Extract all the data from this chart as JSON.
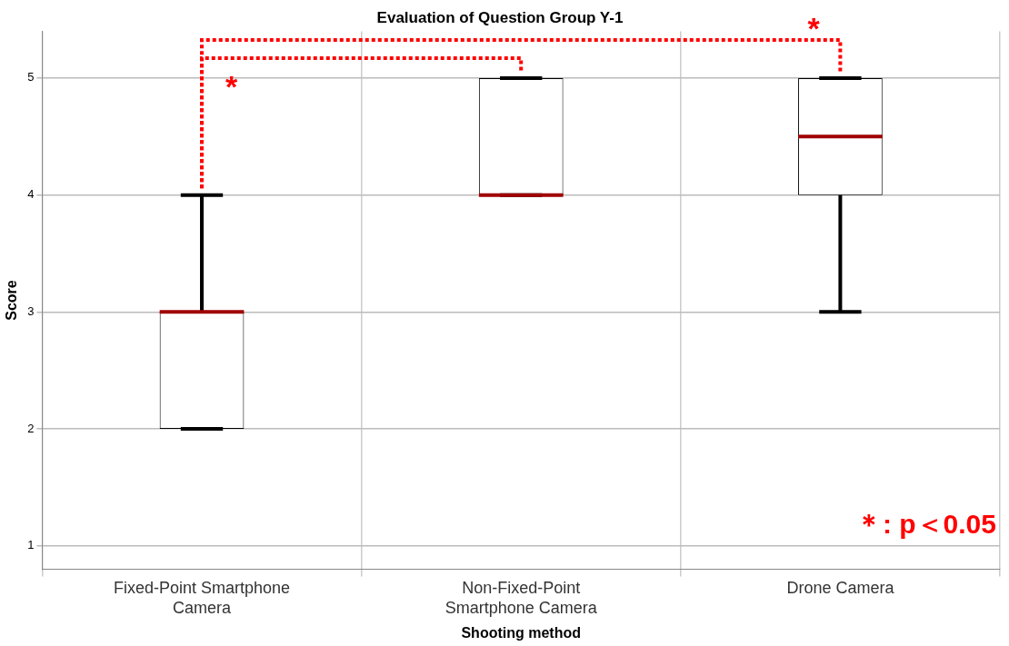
{
  "chart_data": {
    "type": "box",
    "title": "Evaluation of Question Group Y-1",
    "xlabel": "Shooting method",
    "ylabel": "Score",
    "categories": [
      "Fixed-Point Smartphone Camera",
      "Non-Fixed-Point Smartphone Camera",
      "Drone Camera"
    ],
    "boxes": [
      {
        "low": 2,
        "q1": 2,
        "median": 3,
        "q3": 3,
        "high": 4
      },
      {
        "low": 4,
        "q1": 4,
        "median": 4,
        "q3": 5,
        "high": 5
      },
      {
        "low": 3,
        "q1": 4,
        "median": 4.5,
        "q3": 5,
        "high": 5
      }
    ],
    "ylim": [
      0.8,
      5.4
    ],
    "yticks": [
      1,
      2,
      3,
      4,
      5
    ],
    "grid": true,
    "legend": false,
    "annotations": [
      "*",
      "*",
      "＊: p＜0.05"
    ]
  }
}
